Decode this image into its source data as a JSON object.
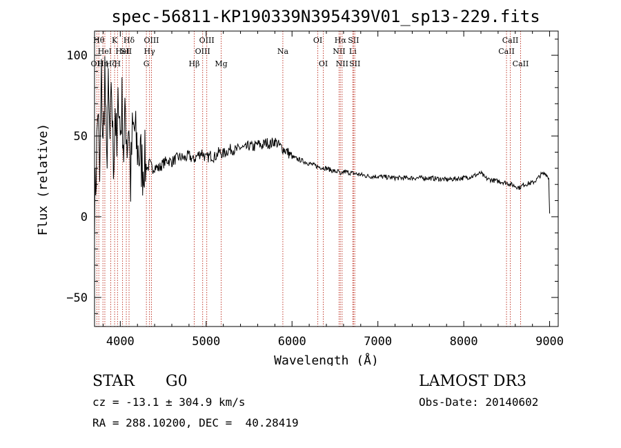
{
  "chart_data": {
    "type": "line",
    "title": "spec-56811-KP190339N395439V01_sp13-229.fits",
    "xlabel": "Wavelength (Å)",
    "ylabel": "Flux (relative)",
    "xlim": [
      3700,
      9100
    ],
    "ylim": [
      -68,
      115
    ],
    "xticks": [
      4000,
      5000,
      6000,
      7000,
      8000,
      9000
    ],
    "yticks": [
      -50,
      0,
      50,
      100
    ],
    "series": [
      {
        "name": "flux",
        "x": [
          3700,
          3720,
          3740,
          3760,
          3780,
          3800,
          3820,
          3840,
          3860,
          3880,
          3900,
          3920,
          3940,
          3960,
          3980,
          4000,
          4020,
          4040,
          4060,
          4080,
          4100,
          4120,
          4140,
          4160,
          4180,
          4200,
          4220,
          4240,
          4260,
          4280,
          4300,
          4320,
          4340,
          4360,
          4380,
          4400,
          4450,
          4500,
          4550,
          4600,
          4650,
          4700,
          4750,
          4800,
          4850,
          4900,
          4950,
          5000,
          5050,
          5100,
          5150,
          5200,
          5250,
          5300,
          5350,
          5400,
          5450,
          5500,
          5550,
          5600,
          5650,
          5700,
          5750,
          5800,
          5850,
          5900,
          5950,
          6000,
          6100,
          6200,
          6300,
          6400,
          6500,
          6550,
          6563,
          6600,
          6700,
          6800,
          6900,
          7000,
          7200,
          7400,
          7600,
          7800,
          8000,
          8100,
          8150,
          8200,
          8250,
          8300,
          8400,
          8500,
          8600,
          8650,
          8700,
          8800,
          8850,
          8900,
          8950,
          8990,
          9000
        ],
        "y": [
          5,
          30,
          70,
          20,
          85,
          40,
          92,
          30,
          75,
          45,
          78,
          30,
          70,
          35,
          80,
          50,
          70,
          40,
          65,
          45,
          60,
          20,
          50,
          55,
          48,
          42,
          38,
          36,
          30,
          35,
          32,
          30,
          33,
          31,
          30,
          31,
          30,
          33,
          35,
          34,
          36,
          37,
          36,
          38,
          35,
          38,
          40,
          36,
          38,
          37,
          40,
          39,
          41,
          42,
          41,
          43,
          42,
          44,
          43,
          45,
          44,
          46,
          45,
          47,
          44,
          42,
          40,
          37,
          35,
          33,
          31,
          30,
          28,
          28,
          25,
          28,
          27,
          26,
          25,
          25,
          24,
          24,
          24,
          23,
          24,
          25,
          26,
          27,
          24,
          23,
          22,
          21,
          19,
          18,
          20,
          21,
          23,
          26,
          27,
          24,
          2
        ]
      }
    ],
    "lines": [
      {
        "wl": 3727,
        "label": "OII",
        "row": 3
      },
      {
        "wl": 3750,
        "label": "Hθ",
        "row": 1
      },
      {
        "wl": 3798,
        "label": "Hη",
        "row": 3
      },
      {
        "wl": 3820,
        "label": "HeI",
        "row": 2
      },
      {
        "wl": 3889,
        "label": "Hζ",
        "row": 3
      },
      {
        "wl": 3934,
        "label": "K",
        "row": 1
      },
      {
        "wl": 3968,
        "label": "H",
        "row": 3
      },
      {
        "wl": 4026,
        "label": "HeI",
        "row": 2
      },
      {
        "wl": 4070,
        "label": "SII",
        "row": 2
      },
      {
        "wl": 4102,
        "label": "Hδ",
        "row": 1
      },
      {
        "wl": 4304,
        "label": "G",
        "row": 3
      },
      {
        "wl": 4340,
        "label": "Hγ",
        "row": 2
      },
      {
        "wl": 4363,
        "label": "OIII",
        "row": 1
      },
      {
        "wl": 4861,
        "label": "Hβ",
        "row": 3
      },
      {
        "wl": 4959,
        "label": "OIII",
        "row": 2
      },
      {
        "wl": 5007,
        "label": "OIII",
        "row": 1
      },
      {
        "wl": 5175,
        "label": "Mg",
        "row": 3
      },
      {
        "wl": 5893,
        "label": "Na",
        "row": 2
      },
      {
        "wl": 6300,
        "label": "OI",
        "row": 1
      },
      {
        "wl": 6364,
        "label": "OI",
        "row": 3
      },
      {
        "wl": 6548,
        "label": "NII",
        "row": 2
      },
      {
        "wl": 6563,
        "label": "Hα",
        "row": 1
      },
      {
        "wl": 6583,
        "label": "NII",
        "row": 3
      },
      {
        "wl": 6708,
        "label": "Li",
        "row": 2
      },
      {
        "wl": 6716,
        "label": "SII",
        "row": 1
      },
      {
        "wl": 6731,
        "label": "SII",
        "row": 3
      },
      {
        "wl": 8498,
        "label": "CaII",
        "row": 2
      },
      {
        "wl": 8542,
        "label": "CaII",
        "row": 1
      },
      {
        "wl": 8662,
        "label": "CaII",
        "row": 3
      }
    ]
  },
  "info": {
    "class": "STAR",
    "subclass": "G0",
    "survey": "LAMOST DR3",
    "cz": "cz = -13.1 ± 304.9 km/s",
    "obs_date": "Obs-Date: 20140602",
    "coords": "RA = 288.10200, DEC =  40.28419"
  }
}
